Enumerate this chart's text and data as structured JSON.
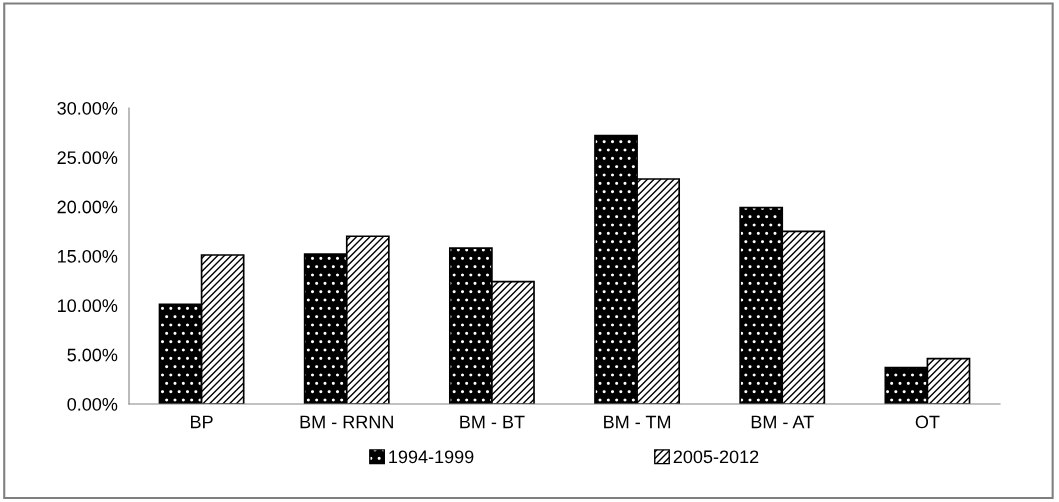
{
  "chart_data": {
    "type": "bar",
    "categories": [
      "BP",
      "BM - RRNN",
      "BM - BT",
      "BM - TM",
      "BM - AT",
      "OT"
    ],
    "series": [
      {
        "name": "1994-1999",
        "color": "#000000",
        "values": [
          10.1,
          15.2,
          15.8,
          27.2,
          19.9,
          3.7
        ]
      },
      {
        "name": "2005-2012",
        "color": "#ffffff",
        "values": [
          15.1,
          17.0,
          12.4,
          22.8,
          17.5,
          4.6
        ]
      }
    ],
    "ylim": [
      0,
      30
    ],
    "yticks": [
      {
        "value": 0,
        "label": "0.00%"
      },
      {
        "value": 5,
        "label": "5.00%"
      },
      {
        "value": 10,
        "label": "10.00%"
      },
      {
        "value": 15,
        "label": "15.00%"
      },
      {
        "value": 20,
        "label": "20.00%"
      },
      {
        "value": 25,
        "label": "25.00%"
      },
      {
        "value": 30,
        "label": "30.00%"
      }
    ],
    "grid": false,
    "legend": "bottom"
  }
}
